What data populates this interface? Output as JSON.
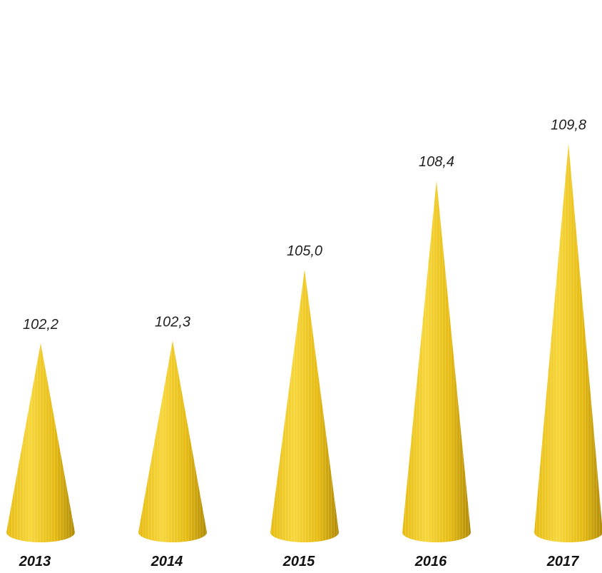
{
  "chart_data": {
    "type": "bar",
    "mark_shape": "cone",
    "categories": [
      "2013",
      "2014",
      "2015",
      "2016",
      "2017"
    ],
    "values": [
      102.2,
      102.3,
      105.0,
      108.4,
      109.8
    ],
    "value_labels": [
      "102,2",
      "102,3",
      "105,0",
      "108,4",
      "109,8"
    ],
    "title": "",
    "xlabel": "",
    "ylabel": "",
    "ylim": [
      95,
      111
    ],
    "grid": false,
    "legend": "none",
    "colors": {
      "cone_light": "#f7d63a",
      "cone_mid": "#e6bb12",
      "cone_dark": "#b08a06",
      "text": "#222222"
    }
  }
}
